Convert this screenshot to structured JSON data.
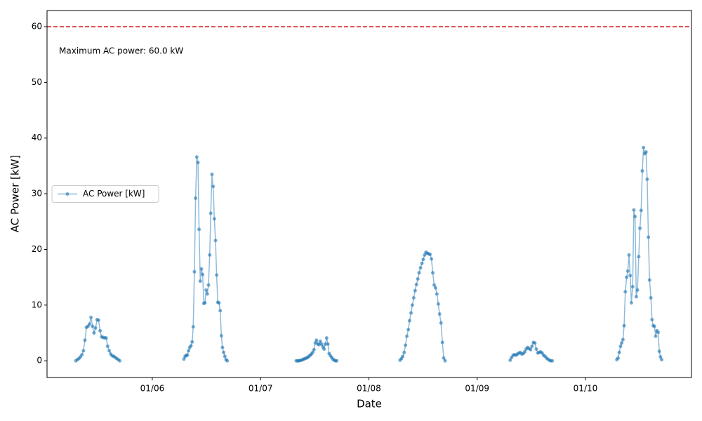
{
  "chart_data": {
    "type": "line",
    "x_label": "Date",
    "y_label": "AC Power [kW]",
    "xlim": [
      5.028,
      10.979
    ],
    "ylim": [
      -3.0,
      62.9
    ],
    "xticks": [
      {
        "value": 6,
        "label": "01/06"
      },
      {
        "value": 7,
        "label": "01/07"
      },
      {
        "value": 8,
        "label": "01/08"
      },
      {
        "value": 9,
        "label": "01/09"
      },
      {
        "value": 10,
        "label": "01/10"
      }
    ],
    "yticks": [
      0,
      10,
      20,
      30,
      40,
      50,
      60
    ],
    "grid": false,
    "legend": "center left",
    "hline": {
      "value": 60,
      "color": "#d62728",
      "label": "Maximum AC power: 60.0 kW"
    },
    "series": [
      {
        "name": "AC Power [kW]",
        "color": "#1f77b4",
        "x": [
          5.294,
          5.308,
          5.322,
          5.336,
          5.35,
          5.364,
          5.378,
          5.392,
          5.406,
          5.42,
          5.434,
          5.448,
          5.462,
          5.476,
          5.49,
          5.504,
          5.518,
          5.532,
          5.546,
          5.56,
          5.574,
          5.588,
          5.602,
          5.616,
          5.63,
          5.644,
          5.658,
          5.672,
          5.686,
          5.7,
          null,
          6.292,
          6.303,
          6.314,
          6.324,
          6.335,
          6.346,
          6.357,
          6.368,
          6.378,
          6.389,
          6.4,
          6.411,
          6.422,
          6.432,
          6.443,
          6.454,
          6.465,
          6.476,
          6.486,
          6.497,
          6.508,
          6.519,
          6.53,
          6.54,
          6.551,
          6.562,
          6.573,
          6.584,
          6.594,
          6.605,
          6.616,
          6.627,
          6.638,
          6.648,
          6.659,
          6.67,
          6.681,
          6.692,
          null,
          7.329,
          7.341,
          7.352,
          7.364,
          7.376,
          7.388,
          7.399,
          7.411,
          7.423,
          7.434,
          7.446,
          7.458,
          7.469,
          7.481,
          7.493,
          7.505,
          7.516,
          7.528,
          7.54,
          7.551,
          7.563,
          7.575,
          7.586,
          7.598,
          7.61,
          7.622,
          7.633,
          7.645,
          7.657,
          7.668,
          7.68,
          7.692,
          7.703,
          null,
          8.288,
          8.301,
          8.313,
          8.326,
          8.338,
          8.351,
          8.364,
          8.376,
          8.389,
          8.401,
          8.414,
          8.427,
          8.439,
          8.452,
          8.464,
          8.477,
          8.49,
          8.502,
          8.515,
          8.527,
          8.54,
          8.553,
          8.565,
          8.578,
          8.59,
          8.603,
          8.616,
          8.628,
          8.641,
          8.653,
          8.666,
          8.679,
          8.691,
          8.704,
          null,
          9.305,
          9.318,
          9.332,
          9.345,
          9.359,
          9.372,
          9.385,
          9.399,
          9.412,
          9.426,
          9.439,
          9.452,
          9.466,
          9.479,
          9.493,
          9.506,
          9.519,
          9.533,
          9.546,
          9.56,
          9.573,
          9.586,
          9.6,
          9.613,
          9.627,
          9.64,
          9.653,
          9.667,
          9.68,
          9.694,
          null,
          10.29,
          10.301,
          10.312,
          10.324,
          10.335,
          10.346,
          10.357,
          10.368,
          10.38,
          10.391,
          10.402,
          10.413,
          10.424,
          10.436,
          10.447,
          10.458,
          10.469,
          10.48,
          10.492,
          10.503,
          10.514,
          10.525,
          10.536,
          10.548,
          10.559,
          10.57,
          10.581,
          10.592,
          10.604,
          10.615,
          10.626,
          10.637,
          10.648,
          10.66,
          10.671,
          10.682,
          10.693,
          10.704
        ],
        "values": [
          0,
          0.2,
          0.4,
          0.7,
          1.1,
          1.8,
          3.7,
          6.0,
          6.2,
          6.6,
          7.8,
          6.2,
          5.0,
          5.9,
          7.4,
          7.3,
          5.4,
          4.3,
          4.2,
          4.1,
          4.1,
          2.6,
          1.8,
          1.2,
          0.9,
          0.8,
          0.6,
          0.4,
          0.2,
          0,
          null,
          0.3,
          0.8,
          1.0,
          1.0,
          1.8,
          2.4,
          2.7,
          3.4,
          6.1,
          16.0,
          29.2,
          36.6,
          35.6,
          23.6,
          14.3,
          16.5,
          15.5,
          10.3,
          10.4,
          12.7,
          12.0,
          13.6,
          19.0,
          26.5,
          33.5,
          31.3,
          25.5,
          21.6,
          15.4,
          10.5,
          10.4,
          9.0,
          4.5,
          2.4,
          1.5,
          0.8,
          0.2,
          0.0,
          null,
          0,
          0,
          0,
          0.05,
          0.1,
          0.2,
          0.3,
          0.4,
          0.5,
          0.6,
          0.8,
          1.0,
          1.2,
          1.5,
          2.0,
          3.2,
          3.7,
          3.0,
          2.9,
          3.5,
          3.0,
          2.5,
          2.1,
          3.0,
          4.1,
          3.0,
          1.3,
          0.9,
          0.6,
          0.3,
          0.1,
          0.0,
          0.0,
          null,
          0.1,
          0.4,
          0.8,
          1.5,
          2.8,
          4.4,
          5.6,
          7.2,
          8.6,
          10.0,
          11.3,
          12.6,
          13.7,
          14.7,
          15.8,
          16.7,
          17.5,
          18.2,
          19.0,
          19.5,
          19.3,
          19.2,
          19.1,
          18.3,
          15.8,
          13.6,
          13.1,
          12.0,
          10.2,
          8.4,
          6.8,
          3.3,
          0.5,
          0.0,
          null,
          0.1,
          0.6,
          1.0,
          1.1,
          1.0,
          1.2,
          1.4,
          1.5,
          1.2,
          1.3,
          1.6,
          2.1,
          2.4,
          2.2,
          2.0,
          2.6,
          3.3,
          3.2,
          2.1,
          1.4,
          1.5,
          1.6,
          1.4,
          1.0,
          0.8,
          0.5,
          0.3,
          0.1,
          0.0,
          0.0,
          null,
          0.2,
          0.5,
          1.5,
          2.6,
          3.2,
          3.8,
          6.3,
          12.4,
          15.0,
          16.1,
          19.0,
          15.3,
          10.4,
          13.3,
          27.1,
          25.9,
          11.5,
          12.7,
          18.7,
          23.8,
          27.0,
          34.1,
          38.3,
          37.2,
          37.5,
          32.6,
          22.2,
          14.5,
          11.3,
          7.4,
          6.3,
          6.2,
          4.4,
          5.4,
          5.1,
          1.7,
          0.7,
          0.2
        ]
      }
    ]
  }
}
